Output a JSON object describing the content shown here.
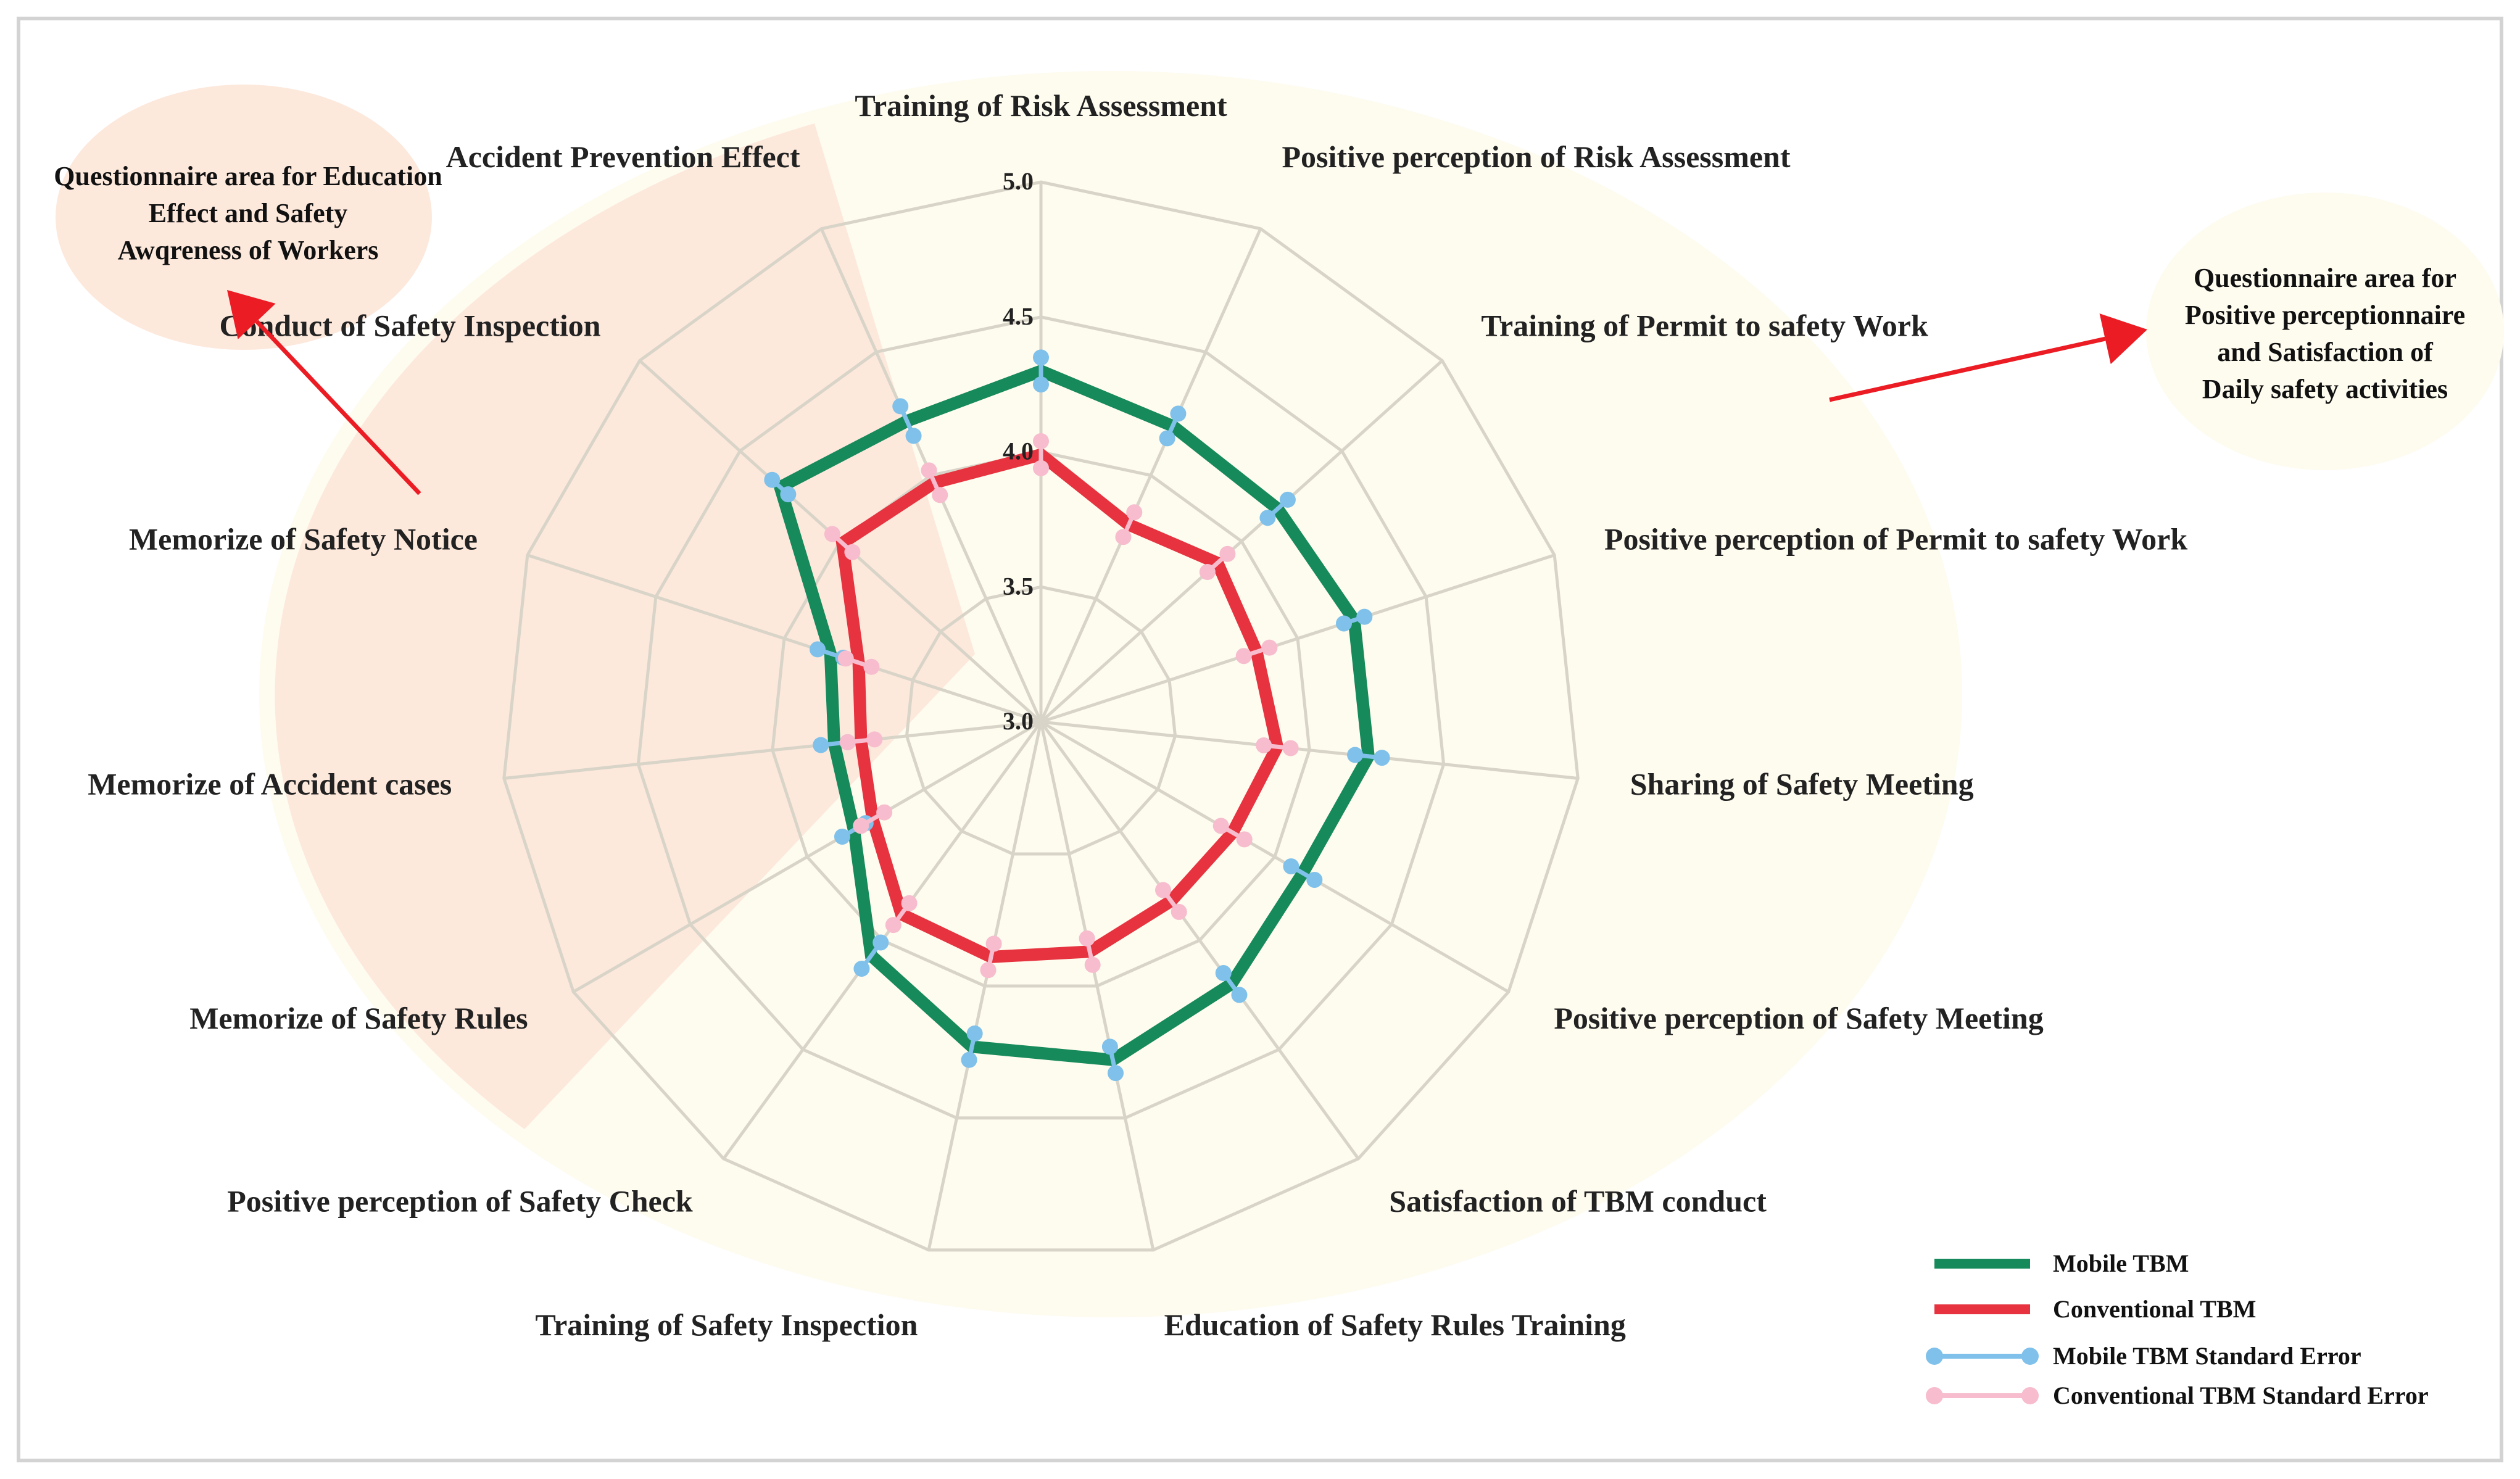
{
  "chart_data": {
    "type": "radar",
    "title": "",
    "rlim": [
      3.0,
      5.0
    ],
    "ticks": [
      "3.0",
      "3.5",
      "4.0",
      "4.5",
      "5.0"
    ],
    "categories": [
      "Training of Risk Assessment",
      "Positive perception of Risk Assessment",
      "Training of Permit to safety Work",
      "Positive perception of Permit to safety Work",
      "Sharing of Safety Meeting",
      "Positive perception of Safety Meeting",
      "Satisfaction of TBM conduct",
      "Education of Safety Rules Training",
      "Training of Safety Inspection",
      "Positive perception of Safety Check",
      "Memorize of Safety Rules",
      "Memorize of Accident cases",
      "Memorize of Safety Notice",
      "Conduct of Safety Inspection",
      "Accident Prevention Effect"
    ],
    "series": [
      {
        "name": "Mobile TBM",
        "color": "#178a5c",
        "values": [
          4.3,
          4.2,
          4.18,
          4.22,
          4.22,
          4.12,
          4.2,
          4.28,
          4.23,
          4.07,
          3.8,
          3.77,
          3.82,
          4.3,
          4.22
        ],
        "errors": [
          0.05,
          0.05,
          0.05,
          0.04,
          0.05,
          0.05,
          0.05,
          0.05,
          0.05,
          0.06,
          0.05,
          0.05,
          0.05,
          0.04,
          0.06
        ]
      },
      {
        "name": "Conventional TBM",
        "color": "#e6333f",
        "values": [
          3.99,
          3.8,
          3.88,
          3.84,
          3.88,
          3.82,
          3.82,
          3.87,
          3.89,
          3.88,
          3.72,
          3.67,
          3.71,
          3.99,
          3.97
        ],
        "errors": [
          0.05,
          0.05,
          0.05,
          0.05,
          0.05,
          0.05,
          0.05,
          0.05,
          0.05,
          0.05,
          0.05,
          0.05,
          0.05,
          0.05,
          0.05
        ]
      }
    ],
    "error_series": [
      {
        "name": "Mobile TBM Standard Error",
        "color": "#7fc1ea"
      },
      {
        "name": "Conventional TBM Standard Error",
        "color": "#f7bccd"
      }
    ],
    "legend_position": "bottom-right",
    "grid": true
  },
  "annotations": {
    "left_note_lines": [
      "Questionnaire area for Education",
      "Effect and Safety",
      "Awqreness of Workers"
    ],
    "right_note_lines": [
      "Questionnaire area for",
      "Positive perceptionnaire",
      "and Satisfaction of",
      "Daily safety activities"
    ]
  },
  "colors": {
    "grid": "#d9d4c8",
    "left_region": "#fde8dc",
    "right_region": "#fefbef",
    "arrow": "#ec1c24",
    "frame": "#d3d3d3"
  }
}
